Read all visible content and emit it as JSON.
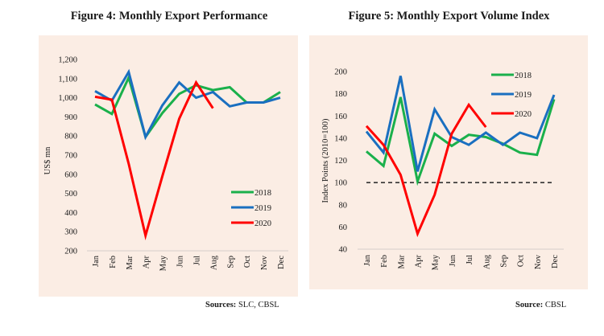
{
  "chart_data": [
    {
      "type": "line",
      "title": "Figure 4: Monthly Export Performance",
      "xlabel": "",
      "ylabel": "US$ mn",
      "ylim": [
        200,
        1200
      ],
      "yticks": [
        "200",
        "300",
        "400",
        "500",
        "600",
        "700",
        "800",
        "900",
        "1,000",
        "1,100",
        "1,200"
      ],
      "ytick_values": [
        200,
        300,
        400,
        500,
        600,
        700,
        800,
        900,
        1000,
        1100,
        1200
      ],
      "categories": [
        "Jan",
        "Feb",
        "Mar",
        "Apr",
        "May",
        "Jun",
        "Jul",
        "Aug",
        "Sep",
        "Oct",
        "Nov",
        "Dec"
      ],
      "grid": false,
      "legend": "bottom-right",
      "series": [
        {
          "name": "2018",
          "color": "#1ab04b",
          "values": [
            965,
            915,
            1105,
            795,
            920,
            1020,
            1065,
            1040,
            1055,
            975,
            975,
            1030
          ]
        },
        {
          "name": "2019",
          "color": "#1a6fc0",
          "values": [
            1035,
            985,
            1135,
            795,
            960,
            1080,
            1000,
            1030,
            955,
            975,
            975,
            1000
          ]
        },
        {
          "name": "2020",
          "color": "#ff0000",
          "values": [
            1005,
            990,
            655,
            280,
            590,
            890,
            1080,
            945
          ]
        }
      ],
      "source_label": "Sources:",
      "source_text": " SLC, CBSL"
    },
    {
      "type": "line",
      "title": "Figure 5: Monthly Export Volume Index",
      "xlabel": "",
      "ylabel": "Index Points (2010=100)",
      "ylim": [
        40,
        200
      ],
      "yticks": [
        "40",
        "60",
        "80",
        "100",
        "120",
        "140",
        "160",
        "180",
        "200"
      ],
      "ytick_values": [
        40,
        60,
        80,
        100,
        120,
        140,
        160,
        180,
        200
      ],
      "categories": [
        "Jan",
        "Feb",
        "Mar",
        "Apr",
        "May",
        "Jun",
        "Jul",
        "Aug",
        "Sep",
        "Oct",
        "Nov",
        "Dec"
      ],
      "grid": false,
      "legend": "top-right",
      "reference_line": {
        "value": 100,
        "style": "dashed",
        "color": "#222222"
      },
      "series": [
        {
          "name": "2018",
          "color": "#1ab04b",
          "values": [
            128,
            115,
            177,
            101,
            144,
            133,
            143,
            141,
            135,
            127,
            125,
            175
          ]
        },
        {
          "name": "2019",
          "color": "#1a6fc0",
          "values": [
            146,
            127,
            196,
            110,
            166,
            141,
            134,
            145,
            134,
            145,
            140,
            179
          ]
        },
        {
          "name": "2020",
          "color": "#ff0000",
          "values": [
            151,
            134,
            107,
            54,
            89,
            144,
            170,
            150
          ]
        }
      ],
      "source_label": "Source:",
      "source_text": " CBSL"
    }
  ]
}
